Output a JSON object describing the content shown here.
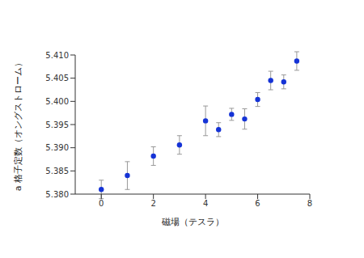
{
  "chart_data": {
    "type": "scatter",
    "x_label": "磁場（テスラ）",
    "y_label": "a 格子定数（オングストローム）",
    "x": [
      0,
      1,
      2,
      3,
      4,
      4.5,
      5,
      5.5,
      6,
      6.5,
      7,
      7.5
    ],
    "values": [
      5.381,
      5.384,
      5.3882,
      5.3906,
      5.3958,
      5.3939,
      5.3972,
      5.3962,
      5.4004,
      5.4045,
      5.4042,
      5.4087
    ],
    "errors": [
      0.002,
      0.003,
      0.002,
      0.002,
      0.0032,
      0.0015,
      0.0013,
      0.0022,
      0.0015,
      0.002,
      0.0015,
      0.002
    ],
    "color": "#1533d6",
    "marker": "circle",
    "xlim": [
      -1,
      8
    ],
    "xticks": [
      0,
      2,
      4,
      6,
      8
    ],
    "ylim": [
      5.38,
      5.41
    ],
    "yticks": [
      {
        "value": 5.38,
        "label": "5.380"
      },
      {
        "value": 5.385,
        "label": "5.385"
      },
      {
        "value": 5.39,
        "label": "5.390"
      },
      {
        "value": 5.395,
        "label": "5.395"
      },
      {
        "value": 5.4,
        "label": "5.400"
      },
      {
        "value": 5.405,
        "label": "5.405"
      },
      {
        "value": 5.41,
        "label": "5.410"
      }
    ],
    "grid": false
  }
}
